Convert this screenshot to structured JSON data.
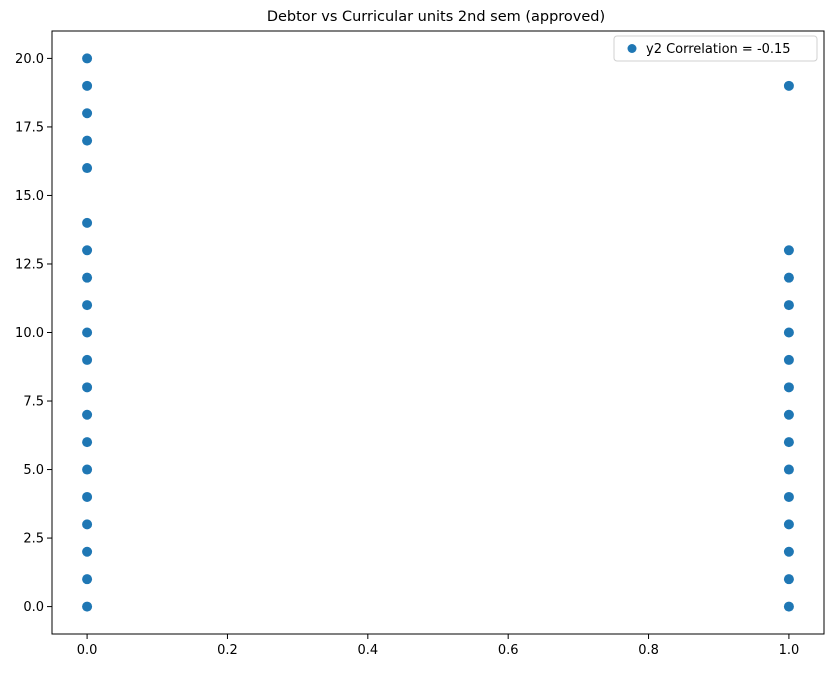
{
  "chart_data": {
    "type": "scatter",
    "title": "Debtor vs Curricular units 2nd sem (approved)",
    "xlabel": "",
    "ylabel": "",
    "xlim": [
      -0.05,
      1.05
    ],
    "ylim": [
      -1.0,
      21.0
    ],
    "x_ticks": [
      0.0,
      0.2,
      0.4,
      0.6,
      0.8,
      1.0
    ],
    "x_tick_labels": [
      "0.0",
      "0.2",
      "0.4",
      "0.6",
      "0.8",
      "1.0"
    ],
    "y_ticks": [
      0.0,
      2.5,
      5.0,
      7.5,
      10.0,
      12.5,
      15.0,
      17.5,
      20.0
    ],
    "y_tick_labels": [
      "0.0",
      "2.5",
      "5.0",
      "7.5",
      "10.0",
      "12.5",
      "15.0",
      "17.5",
      "20.0"
    ],
    "grid": false,
    "legend_position": "top-right",
    "series": [
      {
        "name": "y2 Correlation = -0.15",
        "color": "#1f77b4",
        "points": [
          {
            "x": 0,
            "y": 0
          },
          {
            "x": 0,
            "y": 1
          },
          {
            "x": 0,
            "y": 2
          },
          {
            "x": 0,
            "y": 3
          },
          {
            "x": 0,
            "y": 4
          },
          {
            "x": 0,
            "y": 5
          },
          {
            "x": 0,
            "y": 6
          },
          {
            "x": 0,
            "y": 7
          },
          {
            "x": 0,
            "y": 8
          },
          {
            "x": 0,
            "y": 9
          },
          {
            "x": 0,
            "y": 10
          },
          {
            "x": 0,
            "y": 11
          },
          {
            "x": 0,
            "y": 12
          },
          {
            "x": 0,
            "y": 13
          },
          {
            "x": 0,
            "y": 14
          },
          {
            "x": 0,
            "y": 16
          },
          {
            "x": 0,
            "y": 17
          },
          {
            "x": 0,
            "y": 18
          },
          {
            "x": 0,
            "y": 19
          },
          {
            "x": 0,
            "y": 20
          },
          {
            "x": 1,
            "y": 0
          },
          {
            "x": 1,
            "y": 1
          },
          {
            "x": 1,
            "y": 2
          },
          {
            "x": 1,
            "y": 3
          },
          {
            "x": 1,
            "y": 4
          },
          {
            "x": 1,
            "y": 5
          },
          {
            "x": 1,
            "y": 6
          },
          {
            "x": 1,
            "y": 7
          },
          {
            "x": 1,
            "y": 8
          },
          {
            "x": 1,
            "y": 9
          },
          {
            "x": 1,
            "y": 10
          },
          {
            "x": 1,
            "y": 11
          },
          {
            "x": 1,
            "y": 12
          },
          {
            "x": 1,
            "y": 13
          },
          {
            "x": 1,
            "y": 19
          }
        ]
      }
    ]
  }
}
